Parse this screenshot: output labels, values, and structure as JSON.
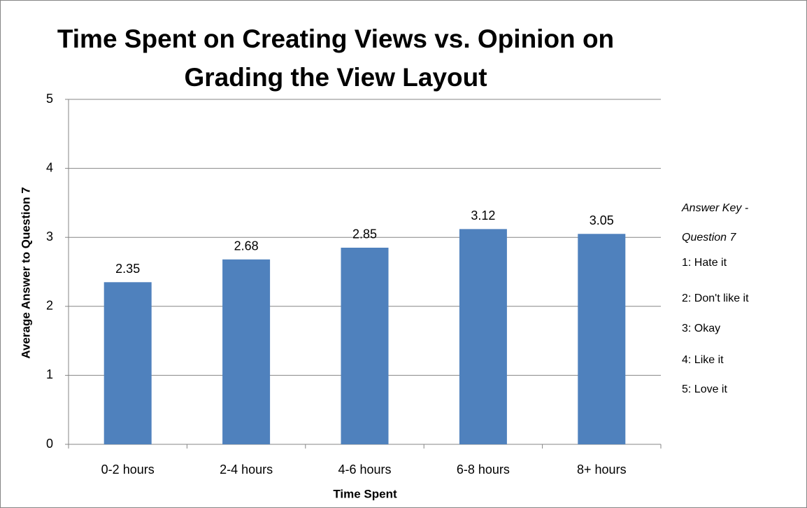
{
  "chart_data": {
    "type": "bar",
    "title": [
      "Time Spent on Creating Views vs. Opinion on",
      "Grading the View Layout"
    ],
    "xlabel": "Time Spent",
    "ylabel": "Average Answer to Question 7",
    "categories": [
      "0-2 hours",
      "2-4 hours",
      "4-6 hours",
      "6-8 hours",
      "8+ hours"
    ],
    "values": [
      2.35,
      2.68,
      2.85,
      3.12,
      3.05
    ],
    "color": "#4f81bd",
    "ylim": [
      0,
      5
    ],
    "yticks": [
      0,
      1,
      2,
      3,
      4,
      5
    ],
    "grid": true,
    "annotations": [
      "Answer Key -",
      "Question  7",
      "1: Hate it",
      "2: Don't like it",
      "3: Okay",
      "4: Like it",
      "5: Love it"
    ]
  }
}
